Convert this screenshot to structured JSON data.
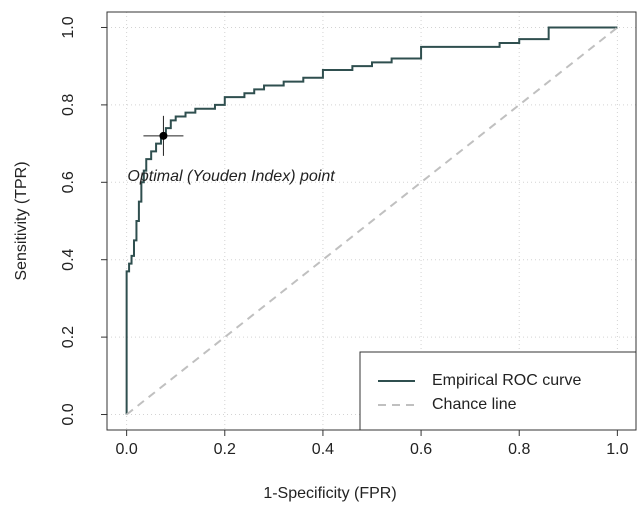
{
  "chart_data": {
    "type": "line",
    "xlabel": "1-Specificity (FPR)",
    "ylabel": "Sensitivity (TPR)",
    "xlim": [
      -0.04,
      1.04
    ],
    "ylim": [
      -0.04,
      1.04
    ],
    "xticks": [
      {
        "value": 0,
        "label": "0.0"
      },
      {
        "value": 0.2,
        "label": "0.2"
      },
      {
        "value": 0.4,
        "label": "0.4"
      },
      {
        "value": 0.6,
        "label": "0.6"
      },
      {
        "value": 0.8,
        "label": "0.8"
      },
      {
        "value": 1,
        "label": "1.0"
      }
    ],
    "yticks": [
      {
        "value": 0,
        "label": "0.0"
      },
      {
        "value": 0.2,
        "label": "0.2"
      },
      {
        "value": 0.4,
        "label": "0.4"
      },
      {
        "value": 0.6,
        "label": "0.6"
      },
      {
        "value": 0.8,
        "label": "0.8"
      },
      {
        "value": 1,
        "label": "1.0"
      }
    ],
    "grid": true,
    "legend": "bottomright",
    "series": [
      {
        "name": "Empirical ROC curve",
        "color": "#2f4f4f",
        "dashed": false,
        "x": [
          0,
          0,
          0.005,
          0.005,
          0.01,
          0.01,
          0.015,
          0.015,
          0.02,
          0.02,
          0.025,
          0.025,
          0.03,
          0.03,
          0.035,
          0.035,
          0.04,
          0.04,
          0.05,
          0.05,
          0.06,
          0.06,
          0.07,
          0.07,
          0.08,
          0.08,
          0.09,
          0.09,
          0.1,
          0.1,
          0.12,
          0.12,
          0.14,
          0.14,
          0.18,
          0.18,
          0.2,
          0.2,
          0.24,
          0.24,
          0.26,
          0.26,
          0.28,
          0.28,
          0.32,
          0.32,
          0.36,
          0.36,
          0.4,
          0.4,
          0.46,
          0.46,
          0.5,
          0.5,
          0.54,
          0.54,
          0.6,
          0.6,
          0.76,
          0.76,
          0.8,
          0.8,
          0.86,
          0.86,
          1
        ],
        "y": [
          0,
          0.37,
          0.37,
          0.39,
          0.39,
          0.41,
          0.41,
          0.45,
          0.45,
          0.5,
          0.5,
          0.55,
          0.55,
          0.6,
          0.6,
          0.63,
          0.63,
          0.66,
          0.66,
          0.68,
          0.68,
          0.7,
          0.7,
          0.72,
          0.72,
          0.74,
          0.74,
          0.76,
          0.76,
          0.77,
          0.77,
          0.78,
          0.78,
          0.79,
          0.79,
          0.8,
          0.8,
          0.82,
          0.82,
          0.83,
          0.83,
          0.84,
          0.84,
          0.85,
          0.85,
          0.86,
          0.86,
          0.87,
          0.87,
          0.89,
          0.89,
          0.9,
          0.9,
          0.91,
          0.91,
          0.92,
          0.92,
          0.95,
          0.95,
          0.96,
          0.96,
          0.97,
          0.97,
          1,
          1
        ]
      },
      {
        "name": "Chance line",
        "color": "#c0c0c0",
        "dashed": true,
        "x": [
          0,
          1
        ],
        "y": [
          0,
          1
        ]
      }
    ],
    "optimal_point": {
      "x": 0.075,
      "y": 0.72,
      "label": "Optimal (Youden Index) point"
    }
  }
}
